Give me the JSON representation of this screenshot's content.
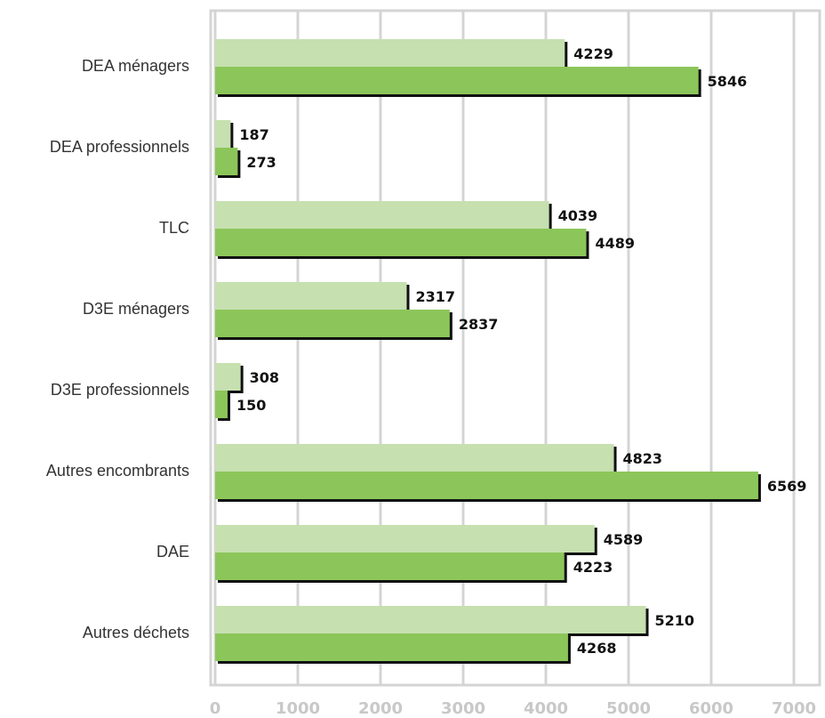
{
  "chart_data": {
    "type": "bar",
    "orientation": "horizontal",
    "categories": [
      "DEA ménagers",
      "DEA professionnels",
      "TLC",
      "D3E ménagers",
      "D3E professionnels",
      "Autres encombrants",
      "DAE",
      "Autres déchets"
    ],
    "series": [
      {
        "color": "#c6e0b0",
        "values": [
          4229,
          187,
          4039,
          2317,
          308,
          4823,
          4589,
          5210
        ]
      },
      {
        "color": "#8cc65a",
        "values": [
          5846,
          273,
          4489,
          2837,
          150,
          6569,
          4223,
          4268
        ]
      }
    ],
    "xlim": [
      0,
      7000
    ],
    "xticks": [
      0,
      1000,
      2000,
      3000,
      4000,
      5000,
      6000,
      7000
    ],
    "grid": true
  }
}
